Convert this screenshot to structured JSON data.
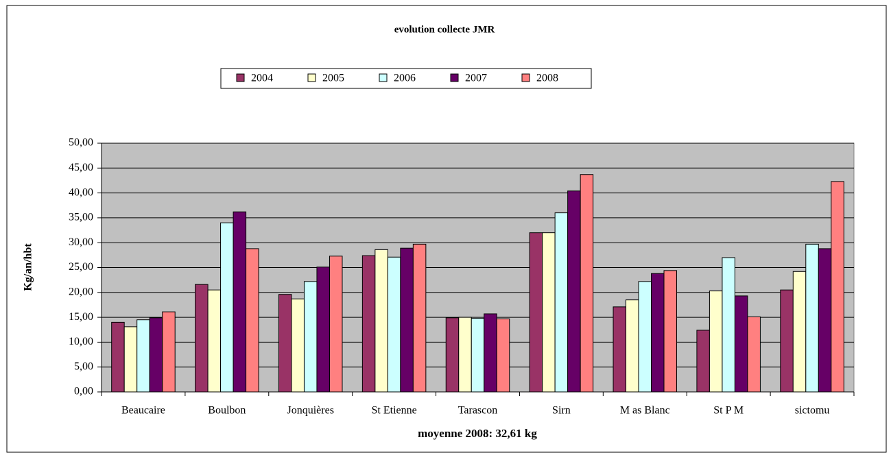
{
  "chart_data": {
    "type": "bar",
    "title": "evolution collecte JMR",
    "y_label": "Kg/an/hbt",
    "x_label": "moyenne 2008: 32,61 kg",
    "categories": [
      "Beaucaire",
      "Boulbon",
      "Jonquières",
      "St Etienne",
      "Tarascon",
      "Sirn",
      "M as Blanc",
      "St P M",
      "sictomu"
    ],
    "series": [
      {
        "name": "2004",
        "color": "#993366",
        "values": [
          14.0,
          21.6,
          19.6,
          27.4,
          14.9,
          32.0,
          17.1,
          12.4,
          20.5
        ]
      },
      {
        "name": "2005",
        "color": "#FFFFCC",
        "values": [
          13.1,
          20.5,
          18.7,
          28.6,
          15.0,
          32.0,
          18.5,
          20.3,
          24.2
        ]
      },
      {
        "name": "2006",
        "color": "#CCFFFF",
        "values": [
          14.5,
          34.0,
          22.2,
          27.1,
          14.8,
          36.0,
          22.2,
          27.0,
          29.7
        ]
      },
      {
        "name": "2007",
        "color": "#660066",
        "values": [
          14.9,
          36.2,
          25.1,
          28.9,
          15.7,
          40.4,
          23.8,
          19.3,
          28.8
        ]
      },
      {
        "name": "2008",
        "color": "#FF8080",
        "values": [
          16.1,
          28.8,
          27.3,
          29.7,
          14.7,
          43.7,
          24.4,
          15.1,
          42.3
        ]
      }
    ],
    "ylim": [
      0,
      50
    ],
    "yticks": [
      {
        "value": 0,
        "label": "0,00"
      },
      {
        "value": 5,
        "label": "5,00"
      },
      {
        "value": 10,
        "label": "10,00"
      },
      {
        "value": 15,
        "label": "15,00"
      },
      {
        "value": 20,
        "label": "20,00"
      },
      {
        "value": 25,
        "label": "25,00"
      },
      {
        "value": 30,
        "label": "30,00"
      },
      {
        "value": 35,
        "label": "35,00"
      },
      {
        "value": 40,
        "label": "40,00"
      },
      {
        "value": 45,
        "label": "45,00"
      },
      {
        "value": 50,
        "label": "50,00"
      }
    ],
    "grid": true,
    "plot_background": "#C0C0C0",
    "legend": "top"
  }
}
